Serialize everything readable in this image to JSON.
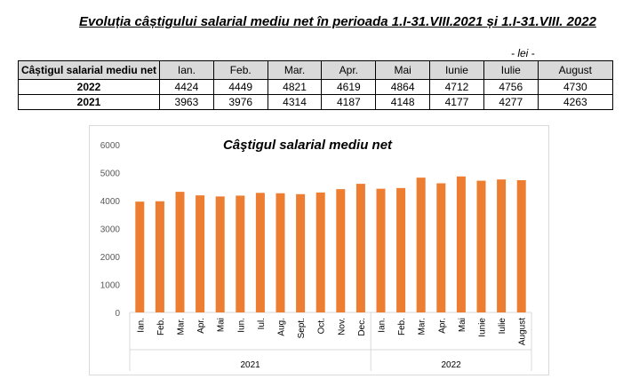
{
  "title": "Evoluția câștigului salarial mediu net în perioada 1.I-31.VIII.2021 și 1.I-31.VIII. 2022",
  "unit": "- lei -",
  "table": {
    "header": [
      "Câștigul salarial mediu net",
      "Ian.",
      "Feb.",
      "Mar.",
      "Apr.",
      "Mai",
      "Iunie",
      "Iulie",
      "August"
    ],
    "rows": [
      [
        "2022",
        "4424",
        "4449",
        "4821",
        "4619",
        "4864",
        "4712",
        "4756",
        "4730"
      ],
      [
        "2021",
        "3963",
        "3976",
        "4314",
        "4187",
        "4148",
        "4177",
        "4277",
        "4263"
      ]
    ]
  },
  "chart_data": {
    "type": "bar",
    "title": "Câştigul salarial mediu net",
    "categories": [
      "Ian.",
      "Feb.",
      "Mar.",
      "Apr.",
      "Mai",
      "Iun.",
      "Iul.",
      "Aug.",
      "Sept.",
      "Oct.",
      "Nov.",
      "Dec.",
      "Ian.",
      "Feb.",
      "Mar.",
      "Apr.",
      "Mai",
      "Iunie",
      "Iulie",
      "August"
    ],
    "groups": [
      {
        "label": "2021",
        "count": 12
      },
      {
        "label": "2022",
        "count": 8
      }
    ],
    "values": [
      3963,
      3976,
      4314,
      4187,
      4148,
      4177,
      4277,
      4263,
      4230,
      4290,
      4410,
      4600,
      4424,
      4449,
      4821,
      4619,
      4864,
      4712,
      4756,
      4730
    ],
    "yticks": [
      "0",
      "1000",
      "2000",
      "3000",
      "4000",
      "5000",
      "6000"
    ],
    "ylim": [
      0,
      6000
    ],
    "color": "#ed7d31"
  }
}
